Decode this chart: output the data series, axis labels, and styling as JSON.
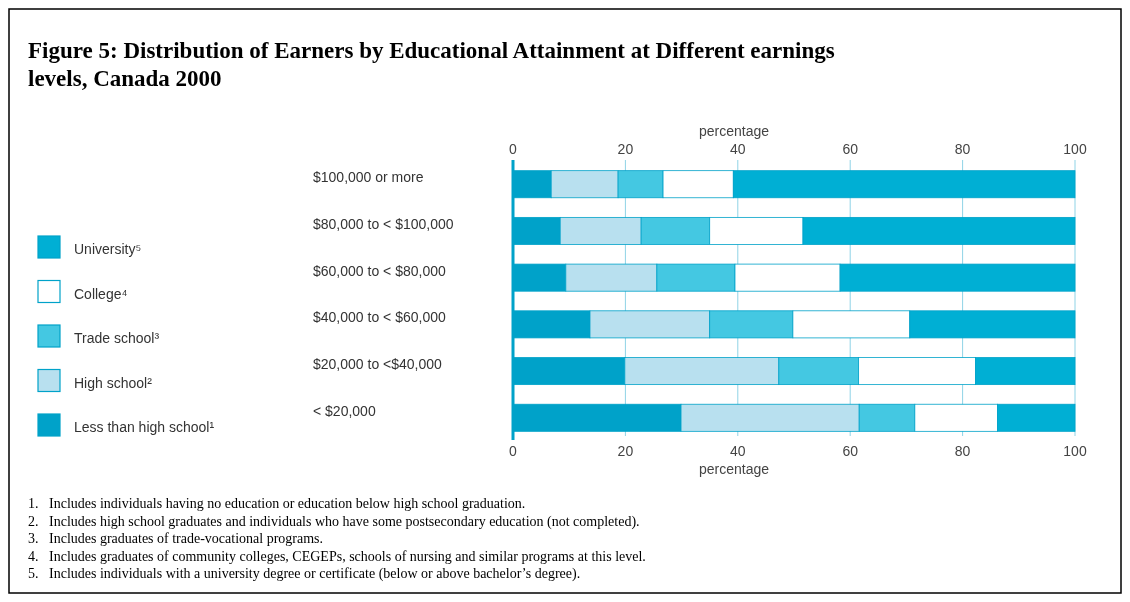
{
  "chart_data": {
    "type": "bar",
    "orientation": "horizontal",
    "stacked": true,
    "title": "Figure 5: Distribution of Earners by Educational Attainment at Different earnings levels, Canada 2000",
    "xlabel": "percentage",
    "x2label": "percentage",
    "categories": [
      "$100,000 or more",
      "$80,000 to < $100,000",
      "$60,000 to < $80,000",
      "$40,000 to < $60,000",
      "$20,000 to <$40,000",
      "< $20,000"
    ],
    "series": [
      {
        "name": "Less than high school¹",
        "color": "#00a2c9",
        "values": [
          6.8,
          8.4,
          9.4,
          13.7,
          19.9,
          29.9
        ]
      },
      {
        "name": "High school²",
        "color": "#b8e0ef",
        "values": [
          11.9,
          14.4,
          16.2,
          21.3,
          27.4,
          31.7
        ]
      },
      {
        "name": "Trade school³",
        "color": "#44c8e2",
        "values": [
          8.0,
          12.2,
          13.9,
          14.8,
          14.2,
          9.9
        ]
      },
      {
        "name": "College⁴",
        "color": "#ffffff",
        "values": [
          12.5,
          16.6,
          18.7,
          20.8,
          20.8,
          14.7
        ]
      },
      {
        "name": "University⁵",
        "color": "#00afd4",
        "values": [
          60.8,
          48.4,
          41.8,
          29.4,
          17.7,
          13.8
        ]
      }
    ],
    "xlim": [
      0,
      100
    ],
    "xticks": [
      0,
      20,
      40,
      60,
      80,
      100
    ],
    "x2lim": [
      0,
      100
    ],
    "x2ticks": [
      0,
      20,
      40,
      60,
      80,
      100
    ],
    "grid": "x",
    "legend": "left",
    "annotations": [
      "1.   Includes individuals having no education or education below high school graduation.",
      "2.   Includes high school graduates and individuals who have some postsecondary education (not completed).",
      "3.   Includes graduates of trade-vocational programs.",
      "4.   Includes graduates of community colleges, CEGEPs, schools of nursing and similar programs at this level.",
      "5.   Includes individuals with a university degree or certificate (below or above bachelor’s degree)."
    ]
  }
}
